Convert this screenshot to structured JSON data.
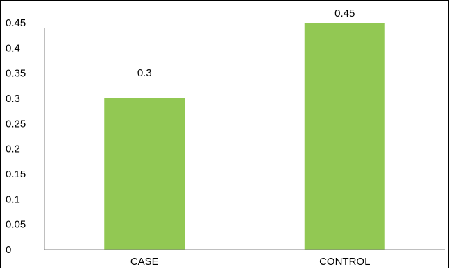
{
  "chart_data": {
    "type": "bar",
    "categories": [
      "CASE",
      "CONTROL"
    ],
    "values": [
      0.3,
      0.45
    ],
    "data_labels": [
      "0.3",
      "0.45"
    ],
    "title": "",
    "xlabel": "",
    "ylabel": "",
    "ylim": [
      0,
      0.45
    ],
    "yticks": [
      "0",
      "0.05",
      "0.1",
      "0.15",
      "0.2",
      "0.25",
      "0.3",
      "0.35",
      "0.4",
      "0.45"
    ],
    "grid": false,
    "legend": "none",
    "bar_color": "#92c853"
  }
}
